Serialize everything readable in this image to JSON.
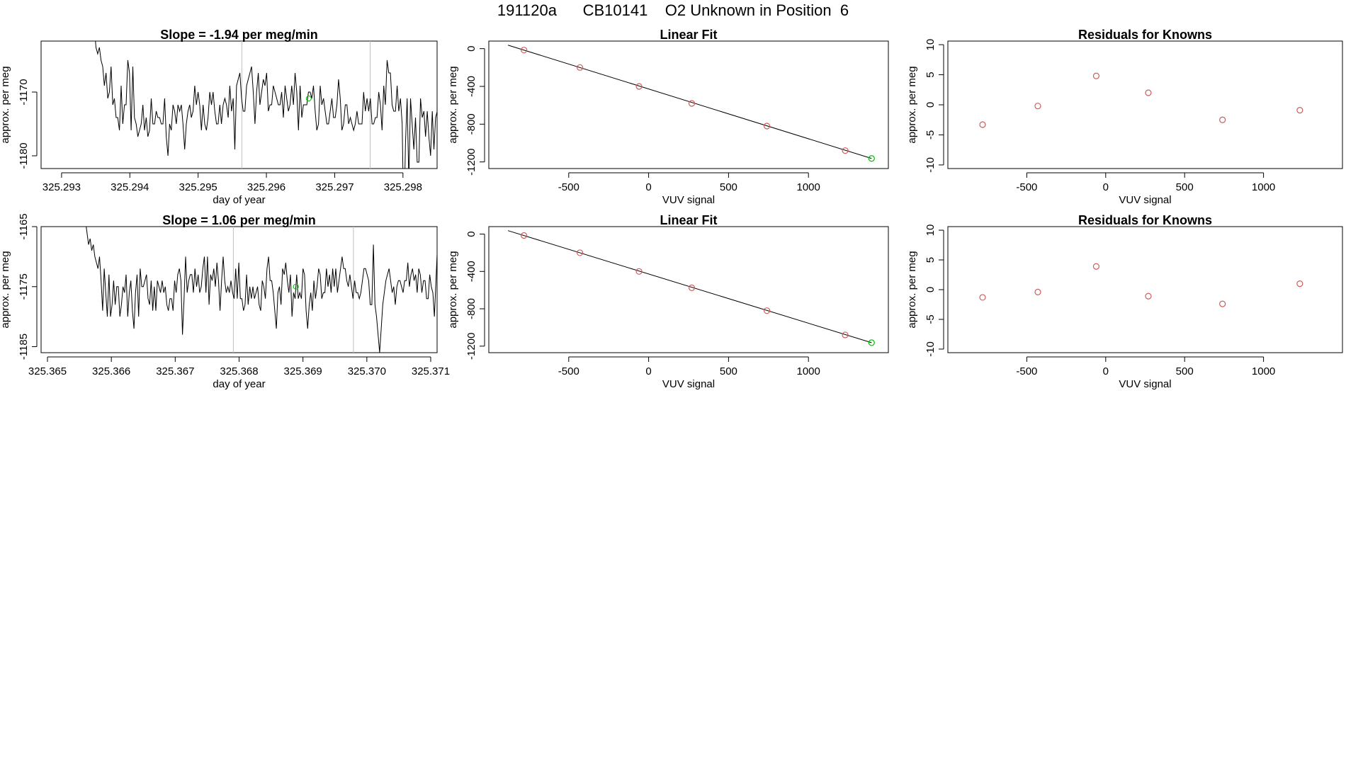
{
  "figure": {
    "title": "191120a      CB10141    O2 Unknown in Position  6"
  },
  "chart_data": [
    {
      "type": "line",
      "panel": "trace-1",
      "title": "Slope =  -1.94  per meg/min",
      "xlabel": "day of year",
      "ylabel": "approx. per meg",
      "xlim": [
        325.2927,
        325.2985
      ],
      "ylim": [
        -1182,
        -1162
      ],
      "xticks": [
        325.293,
        325.294,
        325.295,
        325.296,
        325.297,
        325.298
      ],
      "xtick_labels": [
        "325.293",
        "325.294",
        "325.295",
        "325.296",
        "325.297",
        "325.298"
      ],
      "yticks": [
        -1170,
        -1180
      ],
      "ytick_labels": [
        "-1170",
        "-1180"
      ],
      "vlines": [
        325.29564,
        325.29752
      ],
      "x_start": 325.29348,
      "x_step": 2.45e-05,
      "values": [
        -1160,
        -1163,
        -1164,
        -1163,
        -1165,
        -1166,
        -1169,
        -1167,
        -1171,
        -1170,
        -1166,
        -1172,
        -1171,
        -1174,
        -1174,
        -1176,
        -1169,
        -1175,
        -1172,
        -1172,
        -1165,
        -1167,
        -1176,
        -1166,
        -1174,
        -1175,
        -1177,
        -1176,
        -1175,
        -1172,
        -1176,
        -1174,
        -1177,
        -1176,
        -1171,
        -1175,
        -1175,
        -1173,
        -1174,
        -1174,
        -1175,
        -1175,
        -1171,
        -1177,
        -1180,
        -1175,
        -1176,
        -1172,
        -1173,
        -1175,
        -1172,
        -1173,
        -1172,
        -1175,
        -1179,
        -1175,
        -1173,
        -1172,
        -1174,
        -1173,
        -1169,
        -1172,
        -1170,
        -1172,
        -1176,
        -1172,
        -1175,
        -1176,
        -1174,
        -1170,
        -1172,
        -1170,
        -1173,
        -1175,
        -1175,
        -1172,
        -1175,
        -1172,
        -1171,
        -1172,
        -1174,
        -1169,
        -1173,
        -1171,
        -1179,
        -1169,
        -1168,
        -1167,
        -1171,
        -1173,
        -1173,
        -1169,
        -1168,
        -1167,
        -1166,
        -1170,
        -1175,
        -1170,
        -1167,
        -1172,
        -1170,
        -1168,
        -1169,
        -1167,
        -1173,
        -1172,
        -1172,
        -1169,
        -1170,
        -1171,
        -1172,
        -1172,
        -1170,
        -1174,
        -1169,
        -1171,
        -1173,
        -1172,
        -1169,
        -1172,
        -1167,
        -1170,
        -1176,
        -1169,
        -1174,
        -1172,
        -1172,
        -1172,
        -1170,
        -1170,
        -1171,
        -1169,
        -1173,
        -1176,
        -1175,
        -1169,
        -1172,
        -1171,
        -1173,
        -1175,
        -1175,
        -1173,
        -1171,
        -1174,
        -1174,
        -1172,
        -1168,
        -1171,
        -1176,
        -1175,
        -1172,
        -1172,
        -1175,
        -1174,
        -1175,
        -1176,
        -1175,
        -1173,
        -1175,
        -1175,
        -1175,
        -1170,
        -1173,
        -1171,
        -1173,
        -1171,
        -1175,
        -1175,
        -1174,
        -1174,
        -1170,
        -1172,
        -1176,
        -1169,
        -1172,
        -1165,
        -1167,
        -1167,
        -1172,
        -1173,
        -1173,
        -1169,
        -1173,
        -1171,
        -1175,
        -1191,
        -1178,
        -1171,
        -1184,
        -1171,
        -1175,
        -1179,
        -1174,
        -1181,
        -1181,
        -1171,
        -1174,
        -1173,
        -1177,
        -1173,
        -1177,
        -1180,
        -1173,
        -1179,
        -1174,
        -1173,
        -1172,
        -1181,
        -1175,
        -1180,
        -1172,
        -1178,
        -1176,
        -1171,
        -1178,
        -1175,
        -1175,
        -1179,
        -1174,
        -1175,
        -1172,
        -1172,
        -1177,
        -1176,
        -1176,
        -1179,
        -1186,
        -1176,
        -1164,
        -1162,
        -1160
      ],
      "highlight_point": {
        "x": 325.29662,
        "y": -1171
      },
      "line_color": "#000000",
      "highlight_color": "#00c000",
      "vline_color": "#bebebe"
    },
    {
      "type": "scatter",
      "panel": "fit-1",
      "title": "Linear Fit",
      "xlabel": "VUV signal",
      "ylabel": "approx. per meg",
      "xlim": [
        -1000,
        1500
      ],
      "ylim": [
        -1270,
        80
      ],
      "xticks": [
        -500,
        0,
        500,
        1000
      ],
      "xtick_labels": [
        "-500",
        "0",
        "500",
        "1000"
      ],
      "yticks": [
        0,
        -400,
        -800,
        -1200
      ],
      "ytick_labels": [
        "0",
        "-400",
        "-800",
        "-1200"
      ],
      "fit_line": {
        "x": [
          -880,
          1395
        ],
        "y": [
          37,
          -1163
        ]
      },
      "points": {
        "x": [
          -780,
          -430,
          -60,
          270,
          740,
          1230
        ],
        "y": [
          -15,
          -200,
          -400,
          -580,
          -820,
          -1080
        ]
      },
      "unknown_point": {
        "x": 1395,
        "y": -1163
      },
      "point_color": "#cd5c5c",
      "unknown_color": "#00c000",
      "line_color": "#000000"
    },
    {
      "type": "scatter",
      "panel": "resid-1",
      "title": "Residuals for Knowns",
      "xlabel": "VUV signal",
      "ylabel": "approx. per meg",
      "xlim": [
        -1000,
        1500
      ],
      "ylim": [
        -10.6,
        10.6
      ],
      "xticks": [
        -500,
        0,
        500,
        1000
      ],
      "xtick_labels": [
        "-500",
        "0",
        "500",
        "1000"
      ],
      "yticks": [
        10,
        5,
        0,
        -5,
        -10
      ],
      "ytick_labels": [
        "10",
        "5",
        "0",
        "-5",
        "-10"
      ],
      "points": {
        "x": [
          -780,
          -430,
          -60,
          270,
          740,
          1230
        ],
        "y": [
          -3.3,
          -0.2,
          4.8,
          2.0,
          -2.5,
          -0.9
        ]
      },
      "point_color": "#cd5c5c"
    },
    {
      "type": "line",
      "panel": "trace-2",
      "title": "Slope =  1.06  per meg/min",
      "xlabel": "day of year",
      "ylabel": "approx. per meg",
      "xlim": [
        325.3649,
        325.3711
      ],
      "ylim": [
        -1186,
        -1165
      ],
      "xticks": [
        325.365,
        325.366,
        325.367,
        325.368,
        325.369,
        325.37,
        325.371
      ],
      "xtick_labels": [
        "325.365",
        "325.366",
        "325.367",
        "325.368",
        "325.369",
        "325.370",
        "325.371"
      ],
      "yticks": [
        -1165,
        -1175,
        -1185
      ],
      "ytick_labels": [
        "-1165",
        "-1175",
        "-1185"
      ],
      "vlines": [
        325.36791,
        325.36979
      ],
      "x_start": 325.36557,
      "x_step": 2.45e-05,
      "values": [
        -1162,
        -1164,
        -1166,
        -1168,
        -1167,
        -1169,
        -1168,
        -1170,
        -1171,
        -1172,
        -1170,
        -1174,
        -1179,
        -1172,
        -1176,
        -1180,
        -1173,
        -1180,
        -1178,
        -1174,
        -1178,
        -1175,
        -1175,
        -1180,
        -1178,
        -1175,
        -1176,
        -1173,
        -1180,
        -1176,
        -1174,
        -1179,
        -1182,
        -1176,
        -1173,
        -1180,
        -1172,
        -1175,
        -1175,
        -1174,
        -1173,
        -1177,
        -1178,
        -1174,
        -1179,
        -1175,
        -1179,
        -1174,
        -1175,
        -1176,
        -1174,
        -1176,
        -1175,
        -1178,
        -1179,
        -1177,
        -1177,
        -1179,
        -1174,
        -1176,
        -1173,
        -1172,
        -1174,
        -1183,
        -1177,
        -1170,
        -1176,
        -1174,
        -1173,
        -1173,
        -1176,
        -1172,
        -1175,
        -1173,
        -1176,
        -1175,
        -1172,
        -1170,
        -1176,
        -1170,
        -1178,
        -1173,
        -1174,
        -1172,
        -1175,
        -1171,
        -1174,
        -1179,
        -1174,
        -1170,
        -1174,
        -1176,
        -1175,
        -1176,
        -1174,
        -1176,
        -1177,
        -1172,
        -1177,
        -1171,
        -1177,
        -1177,
        -1179,
        -1178,
        -1173,
        -1178,
        -1175,
        -1177,
        -1175,
        -1177,
        -1176,
        -1175,
        -1178,
        -1179,
        -1174,
        -1175,
        -1177,
        -1172,
        -1170,
        -1174,
        -1174,
        -1176,
        -1179,
        -1182,
        -1176,
        -1175,
        -1178,
        -1172,
        -1173,
        -1171,
        -1174,
        -1176,
        -1173,
        -1180,
        -1176,
        -1177,
        -1173,
        -1177,
        -1176,
        -1177,
        -1172,
        -1173,
        -1179,
        -1182,
        -1178,
        -1176,
        -1179,
        -1174,
        -1177,
        -1175,
        -1172,
        -1173,
        -1177,
        -1176,
        -1176,
        -1172,
        -1175,
        -1173,
        -1176,
        -1172,
        -1175,
        -1172,
        -1176,
        -1174,
        -1172,
        -1170,
        -1172,
        -1172,
        -1174,
        -1175,
        -1173,
        -1175,
        -1177,
        -1174,
        -1176,
        -1176,
        -1177,
        -1176,
        -1174,
        -1172,
        -1172,
        -1173,
        -1174,
        -1178,
        -1178,
        -1168,
        -1178,
        -1180,
        -1183,
        -1186,
        -1182,
        -1178,
        -1176,
        -1174,
        -1173,
        -1172,
        -1174,
        -1176,
        -1175,
        -1178,
        -1175,
        -1174,
        -1174,
        -1175,
        -1176,
        -1174,
        -1174,
        -1171,
        -1175,
        -1173,
        -1172,
        -1174,
        -1173,
        -1176,
        -1172,
        -1173,
        -1176,
        -1174,
        -1174,
        -1177,
        -1177,
        -1173,
        -1175,
        -1176,
        -1180,
        -1174,
        -1168,
        -1163
      ],
      "highlight_point": {
        "x": 325.36889,
        "y": -1175
      },
      "line_color": "#000000",
      "highlight_color": "#00c000",
      "vline_color": "#bebebe"
    },
    {
      "type": "scatter",
      "panel": "fit-2",
      "title": "Linear Fit",
      "xlabel": "VUV signal",
      "ylabel": "approx. per meg",
      "xlim": [
        -1000,
        1500
      ],
      "ylim": [
        -1270,
        80
      ],
      "xticks": [
        -500,
        0,
        500,
        1000
      ],
      "xtick_labels": [
        "-500",
        "0",
        "500",
        "1000"
      ],
      "yticks": [
        0,
        -400,
        -800,
        -1200
      ],
      "ytick_labels": [
        "0",
        "-400",
        "-800",
        "-1200"
      ],
      "fit_line": {
        "x": [
          -880,
          1395
        ],
        "y": [
          37,
          -1163
        ]
      },
      "points": {
        "x": [
          -780,
          -430,
          -60,
          270,
          740,
          1230
        ],
        "y": [
          -15,
          -200,
          -400,
          -575,
          -820,
          -1080
        ]
      },
      "unknown_point": {
        "x": 1395,
        "y": -1163
      },
      "point_color": "#cd5c5c",
      "unknown_color": "#00c000",
      "line_color": "#000000"
    },
    {
      "type": "scatter",
      "panel": "resid-2",
      "title": "Residuals for Knowns",
      "xlabel": "VUV signal",
      "ylabel": "approx. per meg",
      "xlim": [
        -1000,
        1500
      ],
      "ylim": [
        -10.6,
        10.6
      ],
      "xticks": [
        -500,
        0,
        500,
        1000
      ],
      "xtick_labels": [
        "-500",
        "0",
        "500",
        "1000"
      ],
      "yticks": [
        10,
        5,
        0,
        -5,
        -10
      ],
      "ytick_labels": [
        "10",
        "5",
        "0",
        "-5",
        "-10"
      ],
      "points": {
        "x": [
          -780,
          -430,
          -60,
          270,
          740,
          1230
        ],
        "y": [
          -1.3,
          -0.4,
          3.9,
          -1.1,
          -2.4,
          1.0
        ]
      },
      "point_color": "#cd5c5c"
    }
  ]
}
